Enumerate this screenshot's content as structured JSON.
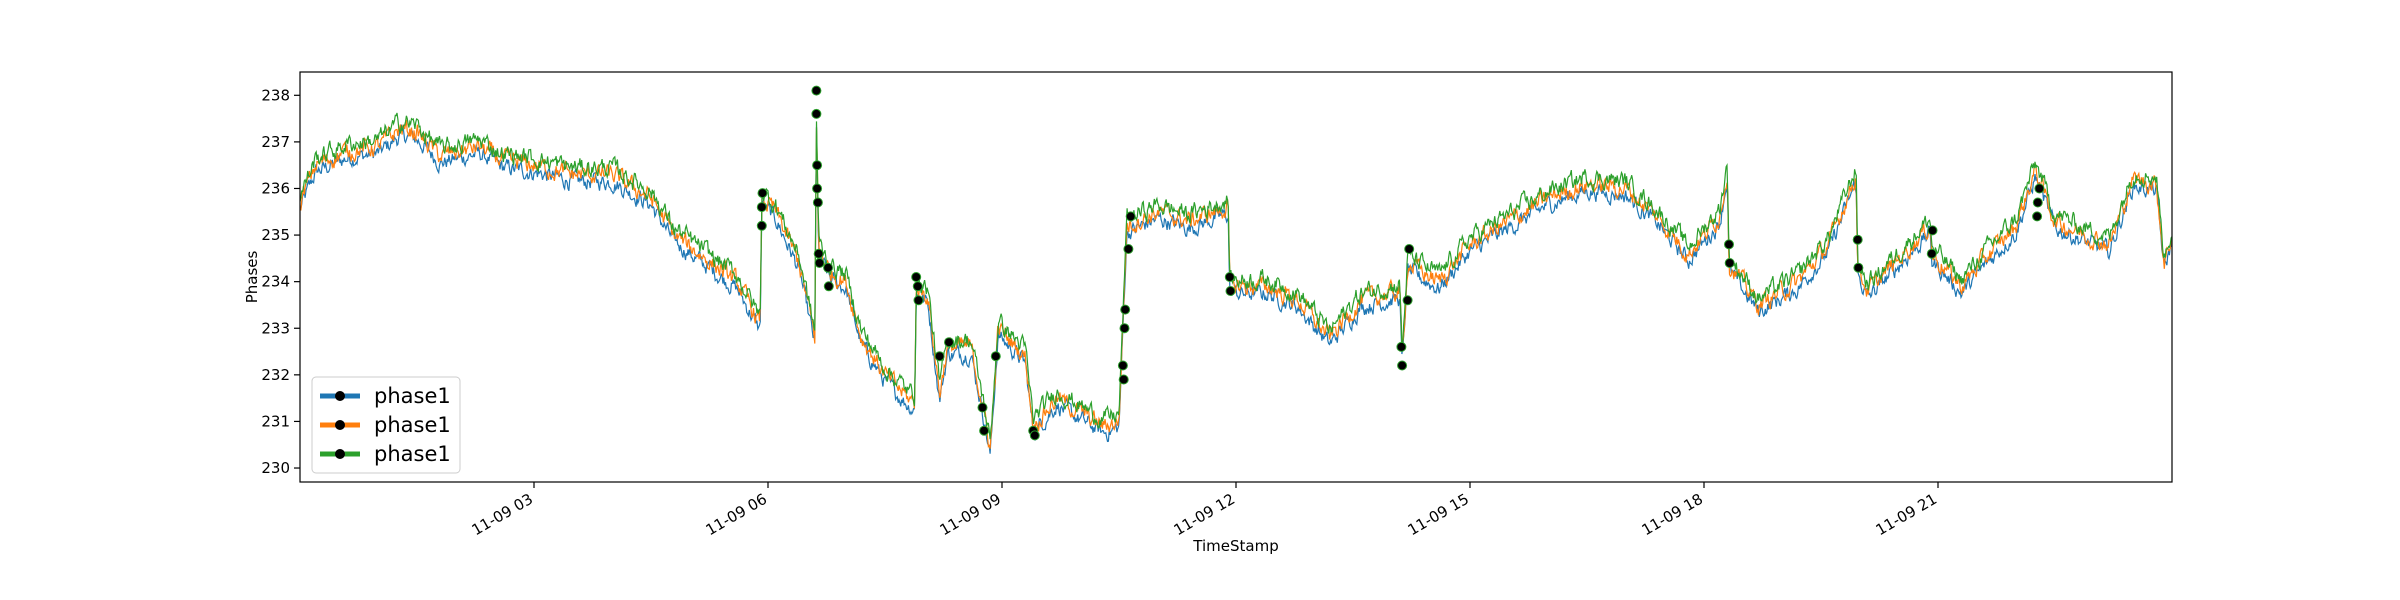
{
  "chart_data": {
    "type": "line",
    "title": "",
    "xlabel": "TimeStamp",
    "ylabel": "Phases",
    "ylim": [
      229.7,
      238.5
    ],
    "xlim_hours": [
      0,
      24
    ],
    "x_ticks": [
      {
        "hour": 3,
        "label": "11-09 03"
      },
      {
        "hour": 6,
        "label": "11-09 06"
      },
      {
        "hour": 9,
        "label": "11-09 09"
      },
      {
        "hour": 12,
        "label": "11-09 12"
      },
      {
        "hour": 15,
        "label": "11-09 15"
      },
      {
        "hour": 18,
        "label": "11-09 18"
      },
      {
        "hour": 21,
        "label": "11-09 21"
      }
    ],
    "y_ticks": [
      230,
      231,
      232,
      233,
      234,
      235,
      236,
      237,
      238
    ],
    "grid": false,
    "legend_position": "lower-left",
    "x_unit": "hour of 11-09",
    "series": [
      {
        "name": "phase1",
        "color": "#1f77b4",
        "offset": -0.15,
        "noise": 0.18
      },
      {
        "name": "phase1",
        "color": "#ff7f0e",
        "offset": 0.0,
        "noise": 0.2
      },
      {
        "name": "phase1",
        "color": "#2ca02c",
        "offset": 0.15,
        "noise": 0.2
      }
    ],
    "base_profile": [
      [
        0.0,
        235.7
      ],
      [
        0.2,
        236.5
      ],
      [
        0.6,
        236.8
      ],
      [
        1.0,
        236.9
      ],
      [
        1.3,
        237.3
      ],
      [
        1.5,
        237.2
      ],
      [
        1.8,
        236.7
      ],
      [
        2.3,
        236.9
      ],
      [
        2.6,
        236.6
      ],
      [
        3.0,
        236.5
      ],
      [
        3.5,
        236.3
      ],
      [
        4.0,
        236.3
      ],
      [
        4.5,
        235.8
      ],
      [
        4.8,
        235.0
      ],
      [
        5.2,
        234.5
      ],
      [
        5.6,
        234.0
      ],
      [
        5.9,
        233.1
      ],
      [
        5.92,
        235.8
      ],
      [
        6.1,
        235.5
      ],
      [
        6.4,
        234.4
      ],
      [
        6.6,
        232.8
      ],
      [
        6.62,
        237.5
      ],
      [
        6.65,
        234.7
      ],
      [
        6.8,
        234.2
      ],
      [
        7.0,
        234.0
      ],
      [
        7.2,
        232.8
      ],
      [
        7.5,
        232.0
      ],
      [
        7.8,
        231.5
      ],
      [
        7.88,
        231.4
      ],
      [
        7.9,
        233.9
      ],
      [
        8.05,
        233.7
      ],
      [
        8.2,
        231.6
      ],
      [
        8.3,
        232.6
      ],
      [
        8.6,
        232.6
      ],
      [
        8.75,
        231.4
      ],
      [
        8.85,
        230.4
      ],
      [
        8.95,
        233.0
      ],
      [
        9.3,
        232.4
      ],
      [
        9.4,
        230.9
      ],
      [
        9.7,
        231.5
      ],
      [
        10.0,
        231.2
      ],
      [
        10.3,
        230.9
      ],
      [
        10.5,
        231.0
      ],
      [
        10.6,
        235.2
      ],
      [
        11.0,
        235.5
      ],
      [
        11.4,
        235.3
      ],
      [
        11.9,
        235.6
      ],
      [
        11.92,
        233.9
      ],
      [
        12.4,
        233.9
      ],
      [
        12.8,
        233.6
      ],
      [
        13.2,
        232.8
      ],
      [
        13.6,
        233.6
      ],
      [
        14.1,
        233.8
      ],
      [
        14.13,
        232.3
      ],
      [
        14.2,
        234.4
      ],
      [
        14.6,
        234.0
      ],
      [
        15.0,
        234.8
      ],
      [
        15.5,
        235.3
      ],
      [
        16.0,
        235.8
      ],
      [
        16.5,
        236.1
      ],
      [
        17.0,
        236.0
      ],
      [
        17.4,
        235.4
      ],
      [
        17.8,
        234.6
      ],
      [
        18.2,
        235.4
      ],
      [
        18.3,
        236.4
      ],
      [
        18.32,
        234.4
      ],
      [
        18.7,
        233.5
      ],
      [
        19.2,
        234.0
      ],
      [
        19.6,
        234.8
      ],
      [
        19.95,
        236.3
      ],
      [
        19.97,
        234.3
      ],
      [
        20.1,
        233.8
      ],
      [
        20.5,
        234.5
      ],
      [
        20.9,
        235.2
      ],
      [
        20.92,
        234.6
      ],
      [
        21.3,
        233.9
      ],
      [
        21.6,
        234.5
      ],
      [
        22.0,
        235.2
      ],
      [
        22.25,
        236.4
      ],
      [
        22.5,
        235.3
      ],
      [
        22.9,
        235.0
      ],
      [
        23.2,
        234.8
      ],
      [
        23.5,
        236.2
      ],
      [
        23.8,
        236.1
      ],
      [
        23.9,
        234.4
      ],
      [
        24.0,
        235.0
      ]
    ],
    "markers": [
      [
        5.92,
        235.2
      ],
      [
        5.92,
        235.6
      ],
      [
        5.93,
        235.9
      ],
      [
        6.62,
        238.1
      ],
      [
        6.62,
        237.6
      ],
      [
        6.63,
        236.5
      ],
      [
        6.63,
        236.0
      ],
      [
        6.64,
        235.7
      ],
      [
        6.65,
        234.6
      ],
      [
        6.66,
        234.4
      ],
      [
        6.77,
        234.3
      ],
      [
        6.78,
        233.9
      ],
      [
        7.9,
        234.1
      ],
      [
        7.92,
        233.9
      ],
      [
        7.93,
        233.6
      ],
      [
        8.2,
        232.4
      ],
      [
        8.32,
        232.7
      ],
      [
        8.75,
        231.3
      ],
      [
        8.77,
        230.8
      ],
      [
        8.92,
        232.4
      ],
      [
        9.4,
        230.8
      ],
      [
        9.42,
        230.7
      ],
      [
        10.55,
        232.2
      ],
      [
        10.56,
        231.9
      ],
      [
        10.57,
        233.0
      ],
      [
        10.58,
        233.4
      ],
      [
        10.62,
        234.7
      ],
      [
        10.65,
        235.4
      ],
      [
        11.92,
        234.1
      ],
      [
        11.93,
        233.8
      ],
      [
        14.12,
        232.6
      ],
      [
        14.13,
        232.2
      ],
      [
        14.2,
        233.6
      ],
      [
        14.22,
        234.7
      ],
      [
        18.32,
        234.8
      ],
      [
        18.33,
        234.4
      ],
      [
        19.97,
        234.9
      ],
      [
        19.98,
        234.3
      ],
      [
        20.92,
        234.6
      ],
      [
        20.93,
        235.1
      ],
      [
        22.27,
        235.4
      ],
      [
        22.28,
        235.7
      ],
      [
        22.3,
        236.0
      ]
    ],
    "legend": [
      "phase1",
      "phase1",
      "phase1"
    ]
  }
}
